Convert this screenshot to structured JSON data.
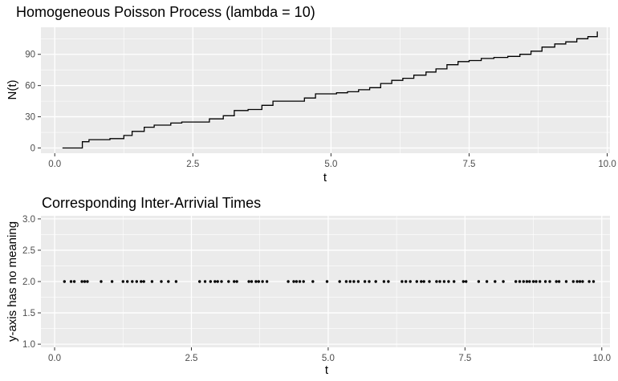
{
  "chart_data": [
    {
      "type": "line",
      "step": true,
      "title": "Homogeneous Poisson Process (lambda = 10)",
      "xlabel": "t",
      "ylabel": "N(t)",
      "xlim": [
        -0.25,
        10.05
      ],
      "ylim": [
        -5,
        116
      ],
      "x_ticks": [
        0,
        2.5,
        5,
        7.5,
        10
      ],
      "x_tick_labels": [
        "0.0",
        "2.5",
        "5.0",
        "7.5",
        "10.0"
      ],
      "y_ticks": [
        0,
        30,
        60,
        90
      ],
      "y_tick_labels": [
        "0",
        "30",
        "60",
        "90"
      ],
      "grid": true,
      "color": "#000000",
      "series": [
        {
          "x": [
            0.14,
            0.5,
            0.62,
            0.78,
            1.0,
            1.25,
            1.4,
            1.62,
            1.8,
            2.1,
            2.3,
            2.55,
            2.8,
            3.05,
            3.25,
            3.5,
            3.75,
            3.95,
            4.15,
            4.32,
            4.52,
            4.72,
            4.9,
            5.1,
            5.3,
            5.5,
            5.7,
            5.9,
            6.1,
            6.3,
            6.5,
            6.72,
            6.9,
            7.1,
            7.3,
            7.5,
            7.72,
            7.95,
            8.2,
            8.42,
            8.62,
            8.82,
            9.05,
            9.25,
            9.45,
            9.65,
            9.82
          ],
          "y": [
            0,
            6,
            8,
            8,
            9,
            12,
            16,
            20,
            22,
            24,
            25,
            25,
            28,
            31,
            36,
            37,
            41,
            45,
            45,
            45,
            48,
            52,
            52,
            53,
            54,
            56,
            58,
            62,
            65,
            67,
            70,
            73,
            76,
            80,
            83,
            84,
            86,
            87,
            88,
            90,
            93,
            97,
            100,
            102,
            105,
            107,
            112
          ]
        }
      ]
    },
    {
      "type": "scatter",
      "title": "Corresponding Inter-Arrivial Times",
      "xlabel": "t",
      "ylabel": "y-axis has no meaning",
      "xlim": [
        -0.25,
        10.15
      ],
      "ylim": [
        0.95,
        3.05
      ],
      "x_ticks": [
        0,
        2.5,
        5,
        7.5,
        10
      ],
      "x_tick_labels": [
        "0.0",
        "2.5",
        "5.0",
        "7.5",
        "10.0"
      ],
      "y_ticks": [
        1.0,
        1.5,
        2.0,
        2.5,
        3.0
      ],
      "y_tick_labels": [
        "1.0",
        "1.5",
        "2.0",
        "2.5",
        "3.0"
      ],
      "grid": true,
      "color": "#000000",
      "series": [
        {
          "x": [
            0.18,
            0.3,
            0.36,
            0.5,
            0.55,
            0.6,
            0.85,
            1.05,
            1.25,
            1.33,
            1.42,
            1.5,
            1.58,
            1.63,
            1.78,
            1.95,
            2.08,
            2.22,
            2.65,
            2.75,
            2.85,
            2.93,
            2.98,
            3.05,
            3.18,
            3.28,
            3.33,
            3.55,
            3.6,
            3.68,
            3.73,
            3.8,
            3.88,
            4.27,
            4.37,
            4.42,
            4.48,
            4.55,
            4.72,
            4.98,
            5.21,
            5.33,
            5.4,
            5.47,
            5.55,
            5.67,
            5.75,
            5.87,
            6.02,
            6.1,
            6.35,
            6.42,
            6.5,
            6.62,
            6.7,
            6.75,
            6.85,
            6.98,
            7.04,
            7.12,
            7.2,
            7.3,
            7.47,
            7.52,
            7.75,
            7.9,
            8.05,
            8.2,
            8.43,
            8.5,
            8.57,
            8.63,
            8.68,
            8.75,
            8.8,
            8.87,
            8.97,
            9.05,
            9.17,
            9.22,
            9.35,
            9.48,
            9.55,
            9.6,
            9.65,
            9.77,
            9.85
          ],
          "y": [
            2,
            2,
            2,
            2,
            2,
            2,
            2,
            2,
            2,
            2,
            2,
            2,
            2,
            2,
            2,
            2,
            2,
            2,
            2,
            2,
            2,
            2,
            2,
            2,
            2,
            2,
            2,
            2,
            2,
            2,
            2,
            2,
            2,
            2,
            2,
            2,
            2,
            2,
            2,
            2,
            2,
            2,
            2,
            2,
            2,
            2,
            2,
            2,
            2,
            2,
            2,
            2,
            2,
            2,
            2,
            2,
            2,
            2,
            2,
            2,
            2,
            2,
            2,
            2,
            2,
            2,
            2,
            2,
            2,
            2,
            2,
            2,
            2,
            2,
            2,
            2,
            2,
            2,
            2,
            2,
            2,
            2,
            2,
            2,
            2,
            2,
            2
          ]
        }
      ]
    }
  ]
}
